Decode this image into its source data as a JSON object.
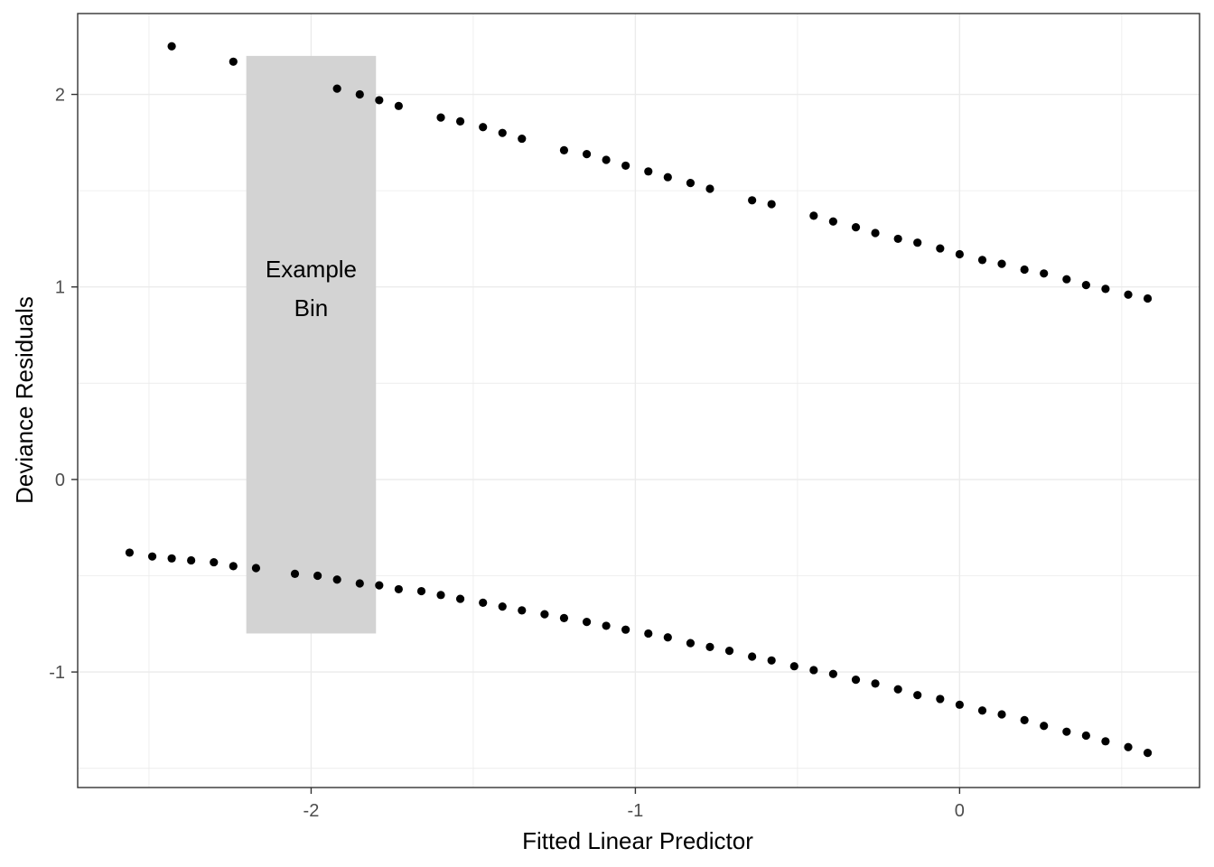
{
  "chart_data": {
    "type": "scatter",
    "title": "",
    "xlabel": "Fitted Linear Predictor",
    "ylabel": "Deviance Residuals",
    "xlim": [
      -2.72,
      0.74
    ],
    "ylim": [
      -1.6,
      2.42
    ],
    "x_ticks": [
      -2,
      -1,
      0
    ],
    "x_tick_labels": [
      "-2",
      "-1",
      "0"
    ],
    "y_ticks": [
      -1,
      0,
      1,
      2
    ],
    "y_tick_labels": [
      "-1",
      "0",
      "1",
      "2"
    ],
    "grid": true,
    "legend": "none",
    "point_color": "#000000",
    "annotation": {
      "label_lines": [
        "Example",
        "Bin"
      ],
      "x_range": [
        -2.2,
        -1.8
      ],
      "y_range": [
        -0.8,
        2.2
      ],
      "fill_color": "#d3d3d3"
    },
    "series": [
      {
        "points": [
          [
            -2.43,
            2.25
          ],
          [
            -2.24,
            2.17
          ],
          [
            -1.92,
            2.03
          ],
          [
            -1.85,
            2.0
          ],
          [
            -1.79,
            1.97
          ],
          [
            -1.73,
            1.94
          ],
          [
            -1.6,
            1.88
          ],
          [
            -1.54,
            1.86
          ],
          [
            -1.47,
            1.83
          ],
          [
            -1.41,
            1.8
          ],
          [
            -1.35,
            1.77
          ],
          [
            -1.22,
            1.71
          ],
          [
            -1.15,
            1.69
          ],
          [
            -1.09,
            1.66
          ],
          [
            -1.03,
            1.63
          ],
          [
            -0.96,
            1.6
          ],
          [
            -0.9,
            1.57
          ],
          [
            -0.83,
            1.54
          ],
          [
            -0.77,
            1.51
          ],
          [
            -0.64,
            1.45
          ],
          [
            -0.58,
            1.43
          ],
          [
            -0.45,
            1.37
          ],
          [
            -0.39,
            1.34
          ],
          [
            -0.32,
            1.31
          ],
          [
            -0.26,
            1.28
          ],
          [
            -0.19,
            1.25
          ],
          [
            -0.13,
            1.23
          ],
          [
            -0.06,
            1.2
          ],
          [
            0.0,
            1.17
          ],
          [
            0.07,
            1.14
          ],
          [
            0.13,
            1.12
          ],
          [
            0.2,
            1.09
          ],
          [
            0.26,
            1.07
          ],
          [
            0.33,
            1.04
          ],
          [
            0.39,
            1.01
          ],
          [
            0.45,
            0.99
          ],
          [
            0.52,
            0.96
          ],
          [
            0.58,
            0.94
          ]
        ]
      },
      {
        "points": [
          [
            -2.56,
            -0.38
          ],
          [
            -2.49,
            -0.4
          ],
          [
            -2.43,
            -0.41
          ],
          [
            -2.37,
            -0.42
          ],
          [
            -2.3,
            -0.43
          ],
          [
            -2.24,
            -0.45
          ],
          [
            -2.17,
            -0.46
          ],
          [
            -2.05,
            -0.49
          ],
          [
            -1.98,
            -0.5
          ],
          [
            -1.92,
            -0.52
          ],
          [
            -1.85,
            -0.54
          ],
          [
            -1.79,
            -0.55
          ],
          [
            -1.73,
            -0.57
          ],
          [
            -1.66,
            -0.58
          ],
          [
            -1.6,
            -0.6
          ],
          [
            -1.54,
            -0.62
          ],
          [
            -1.47,
            -0.64
          ],
          [
            -1.41,
            -0.66
          ],
          [
            -1.35,
            -0.68
          ],
          [
            -1.28,
            -0.7
          ],
          [
            -1.22,
            -0.72
          ],
          [
            -1.15,
            -0.74
          ],
          [
            -1.09,
            -0.76
          ],
          [
            -1.03,
            -0.78
          ],
          [
            -0.96,
            -0.8
          ],
          [
            -0.9,
            -0.82
          ],
          [
            -0.83,
            -0.85
          ],
          [
            -0.77,
            -0.87
          ],
          [
            -0.71,
            -0.89
          ],
          [
            -0.64,
            -0.92
          ],
          [
            -0.58,
            -0.94
          ],
          [
            -0.51,
            -0.97
          ],
          [
            -0.45,
            -0.99
          ],
          [
            -0.39,
            -1.01
          ],
          [
            -0.32,
            -1.04
          ],
          [
            -0.26,
            -1.06
          ],
          [
            -0.19,
            -1.09
          ],
          [
            -0.13,
            -1.12
          ],
          [
            -0.06,
            -1.14
          ],
          [
            0.0,
            -1.17
          ],
          [
            0.07,
            -1.2
          ],
          [
            0.13,
            -1.22
          ],
          [
            0.2,
            -1.25
          ],
          [
            0.26,
            -1.28
          ],
          [
            0.33,
            -1.31
          ],
          [
            0.39,
            -1.33
          ],
          [
            0.45,
            -1.36
          ],
          [
            0.52,
            -1.39
          ],
          [
            0.58,
            -1.42
          ]
        ]
      }
    ]
  }
}
